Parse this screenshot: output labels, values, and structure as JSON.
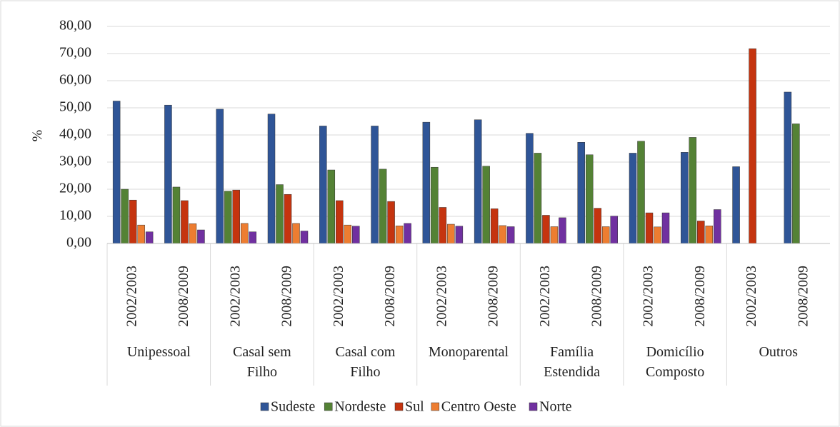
{
  "chart_data": {
    "type": "bar",
    "ylabel": "%",
    "ylim": [
      0,
      80
    ],
    "yticks": [
      {
        "value": 0,
        "label": "0,00"
      },
      {
        "value": 10,
        "label": "10,00"
      },
      {
        "value": 20,
        "label": "20,00"
      },
      {
        "value": 30,
        "label": "30,00"
      },
      {
        "value": 40,
        "label": "40,00"
      },
      {
        "value": 50,
        "label": "50,00"
      },
      {
        "value": 60,
        "label": "60,00"
      },
      {
        "value": 70,
        "label": "70,00"
      },
      {
        "value": 80,
        "label": "80,00"
      }
    ],
    "grid": true,
    "legend": "bottom",
    "groups": [
      {
        "name": "Unipessoal",
        "categories": [
          "2002/2003",
          "2008/2009"
        ]
      },
      {
        "name": "Casal sem\nFilho",
        "categories": [
          "2002/2003",
          "2008/2009"
        ]
      },
      {
        "name": "Casal com\nFilho",
        "categories": [
          "2002/2003",
          "2008/2009"
        ]
      },
      {
        "name": "Monoparental",
        "categories": [
          "2002/2003",
          "2008/2009"
        ]
      },
      {
        "name": "Família\nEstendida",
        "categories": [
          "2002/2003",
          "2008/2009"
        ]
      },
      {
        "name": "Domicílio\nComposto",
        "categories": [
          "2002/2003",
          "2008/2009"
        ]
      },
      {
        "name": "Outros",
        "categories": [
          "2002/2003",
          "2008/2009"
        ]
      }
    ],
    "series": [
      {
        "name": "Sudeste",
        "color": "#2f5597",
        "values": [
          52.5,
          51,
          49.5,
          47.7,
          43.3,
          43.3,
          44.7,
          45.6,
          40.6,
          37.3,
          33.3,
          33.6,
          28.3,
          55.8
        ]
      },
      {
        "name": "Nordeste",
        "color": "#548235",
        "values": [
          20,
          20.8,
          19.3,
          21.7,
          27.1,
          27.4,
          28.1,
          28.5,
          33.3,
          32.7,
          37.7,
          39.1,
          null,
          44.1
        ]
      },
      {
        "name": "Sul",
        "color": "#c5340f",
        "values": [
          16,
          15.8,
          19.7,
          18.1,
          15.8,
          15.5,
          13.3,
          12.8,
          10.4,
          13,
          11.3,
          8.3,
          71.8,
          null
        ]
      },
      {
        "name": "Centro Oeste",
        "color": "#ed7d31",
        "values": [
          6.8,
          7.3,
          7.4,
          7.4,
          6.8,
          6.5,
          7.1,
          6.6,
          6.2,
          6.2,
          6.1,
          6.5,
          null,
          null
        ]
      },
      {
        "name": "Norte",
        "color": "#7030a0",
        "values": [
          4.3,
          5,
          4.3,
          4.6,
          6.4,
          7.4,
          6.4,
          6.2,
          9.5,
          10.1,
          11.3,
          12.5,
          null,
          null
        ]
      }
    ]
  }
}
